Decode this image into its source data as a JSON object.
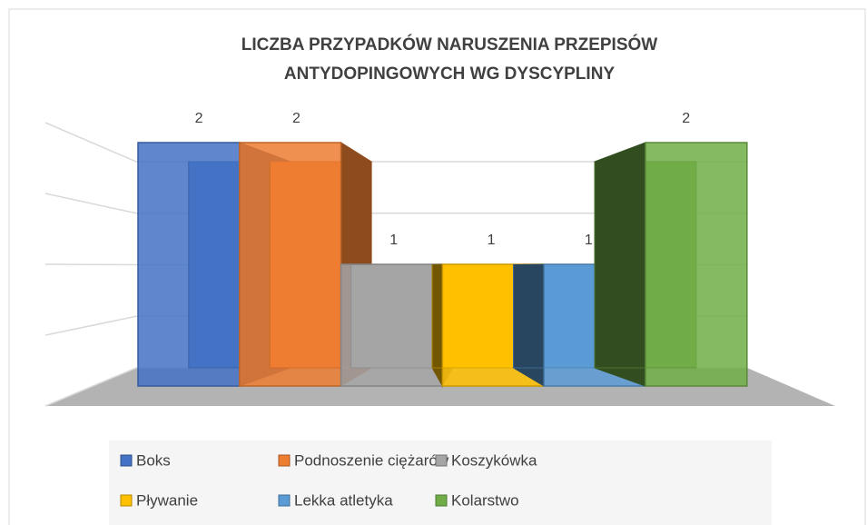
{
  "chart_data": {
    "type": "bar3d",
    "title": [
      "LICZBA PRZYPADKÓW NARUSZENIA PRZEPISÓW",
      "ANTYDOPINGOWYCH WG DYSCYPLINY"
    ],
    "categories": [
      "Boks",
      "Podnoszenie ciężarów",
      "Koszykówka",
      "Pływanie",
      "Lekka atletyka",
      "Kolarstwo"
    ],
    "values": [
      2,
      2,
      1,
      1,
      1,
      2
    ],
    "colors": [
      "#4472c4",
      "#ed7d31",
      "#a5a5a5",
      "#ffc000",
      "#5b9bd5",
      "#70ad47"
    ],
    "ylim": [
      0,
      2
    ],
    "yticks": [
      0,
      0.5,
      1,
      1.5,
      2
    ],
    "grid": true,
    "legend": "bottom"
  }
}
